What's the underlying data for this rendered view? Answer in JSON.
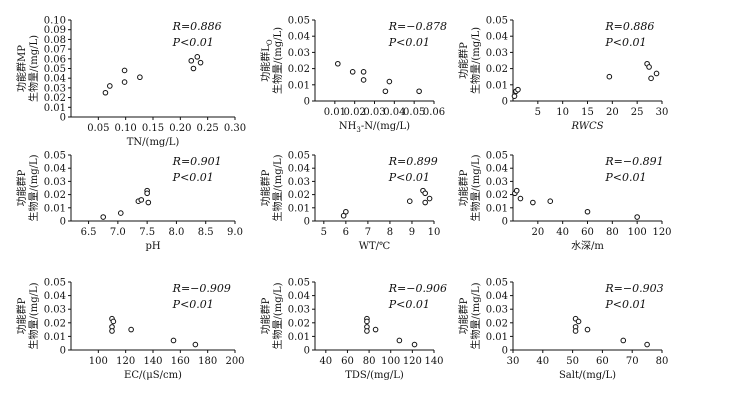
{
  "chart_data": [
    {
      "type": "scatter",
      "ylabel": [
        "功能群MP",
        "生物量/(mg/L)"
      ],
      "xlabel": "TN/(mg/L)",
      "xlim": [
        0,
        0.3
      ],
      "xticks": [
        "0.05",
        "0.10",
        "0.15",
        "0.20",
        "0.25",
        "0.30"
      ],
      "xtick_values": [
        0.05,
        0.1,
        0.15,
        0.2,
        0.25,
        0.3
      ],
      "ylim": [
        0,
        0.1
      ],
      "yticks": [
        "0",
        "0.01",
        "0.02",
        "0.03",
        "0.04",
        "0.05",
        "0.06",
        "0.07",
        "0.08",
        "0.09",
        "0.10"
      ],
      "ytick_values": [
        0,
        0.01,
        0.02,
        0.03,
        0.04,
        0.05,
        0.06,
        0.07,
        0.08,
        0.09,
        0.1
      ],
      "stats": {
        "r": "R=0.886",
        "p": "P<0.01"
      },
      "points": [
        [
          0.063,
          0.025
        ],
        [
          0.071,
          0.032
        ],
        [
          0.098,
          0.036
        ],
        [
          0.098,
          0.048
        ],
        [
          0.126,
          0.041
        ],
        [
          0.22,
          0.058
        ],
        [
          0.224,
          0.05
        ],
        [
          0.231,
          0.062
        ],
        [
          0.237,
          0.056
        ]
      ]
    },
    {
      "type": "scatter",
      "ylabel": [
        "功能群L_O",
        "生物量/(mg/L)"
      ],
      "xlabel": "NH3-N/(mg/L)",
      "xlim": [
        0,
        0.06
      ],
      "xticks": [
        "0.01",
        "0.02",
        "0.03",
        "0.04",
        "0.05",
        "0.06"
      ],
      "xtick_values": [
        0.01,
        0.02,
        0.03,
        0.04,
        0.05,
        0.06
      ],
      "ylim": [
        0,
        0.05
      ],
      "yticks": [
        "0",
        "0.01",
        "0.02",
        "0.03",
        "0.04",
        "0.05"
      ],
      "ytick_values": [
        0,
        0.01,
        0.02,
        0.03,
        0.04,
        0.05
      ],
      "stats": {
        "r": "R=−0.878",
        "p": "P<0.01"
      },
      "points": [
        [
          0.0115,
          0.023
        ],
        [
          0.019,
          0.018
        ],
        [
          0.0245,
          0.018
        ],
        [
          0.0245,
          0.013
        ],
        [
          0.0355,
          0.006
        ],
        [
          0.0375,
          0.012
        ],
        [
          0.0525,
          0.006
        ]
      ]
    },
    {
      "type": "scatter",
      "ylabel": [
        "功能群P",
        "生物量/(mg/L)"
      ],
      "xlabel": "RWCS",
      "xlim": [
        0,
        30
      ],
      "xticks": [
        "5",
        "10",
        "15",
        "20",
        "25",
        "30"
      ],
      "xtick_values": [
        5,
        10,
        15,
        20,
        25,
        30
      ],
      "ylim": [
        0,
        0.05
      ],
      "yticks": [
        "0",
        "0.01",
        "0.02",
        "0.03",
        "0.04",
        "0.05"
      ],
      "ytick_values": [
        0,
        0.01,
        0.02,
        0.03,
        0.04,
        0.05
      ],
      "stats": {
        "r": "R=0.886",
        "p": "P<0.01"
      },
      "points": [
        [
          0.3,
          0.003
        ],
        [
          0.6,
          0.006
        ],
        [
          1.0,
          0.007
        ],
        [
          19.4,
          0.015
        ],
        [
          27.0,
          0.023
        ],
        [
          27.4,
          0.021
        ],
        [
          27.8,
          0.014
        ],
        [
          28.9,
          0.017
        ]
      ]
    },
    {
      "type": "scatter",
      "ylabel": [
        "功能群P",
        "生物量/(mg/L)"
      ],
      "xlabel": "pH",
      "xlim": [
        6.2,
        9.0
      ],
      "xticks": [
        "6.5",
        "7.0",
        "7.5",
        "8.0",
        "8.5",
        "9.0"
      ],
      "xtick_values": [
        6.5,
        7.0,
        7.5,
        8.0,
        8.5,
        9.0
      ],
      "ylim": [
        0,
        0.05
      ],
      "yticks": [
        "0",
        "0.01",
        "0.02",
        "0.03",
        "0.04",
        "0.05"
      ],
      "ytick_values": [
        0,
        0.01,
        0.02,
        0.03,
        0.04,
        0.05
      ],
      "stats": {
        "r": "R=0.901",
        "p": "P<0.01"
      },
      "points": [
        [
          6.75,
          0.003
        ],
        [
          7.05,
          0.006
        ],
        [
          7.35,
          0.015
        ],
        [
          7.4,
          0.016
        ],
        [
          7.5,
          0.023
        ],
        [
          7.5,
          0.021
        ],
        [
          7.52,
          0.014
        ]
      ]
    },
    {
      "type": "scatter",
      "ylabel": [
        "功能群P",
        "生物量/(mg/L)"
      ],
      "xlabel": "WT/℃",
      "xlim": [
        4.6,
        10
      ],
      "xticks": [
        "5",
        "6",
        "7",
        "8",
        "9",
        "10"
      ],
      "xtick_values": [
        5,
        6,
        7,
        8,
        9,
        10
      ],
      "ylim": [
        0,
        0.05
      ],
      "yticks": [
        "0",
        "0.01",
        "0.02",
        "0.03",
        "0.04",
        "0.05"
      ],
      "ytick_values": [
        0,
        0.01,
        0.02,
        0.03,
        0.04,
        0.05
      ],
      "stats": {
        "r": "R=0.899",
        "p": "P<0.01"
      },
      "points": [
        [
          5.9,
          0.004
        ],
        [
          6.0,
          0.007
        ],
        [
          8.9,
          0.015
        ],
        [
          9.5,
          0.023
        ],
        [
          9.6,
          0.021
        ],
        [
          9.6,
          0.014
        ],
        [
          9.8,
          0.017
        ]
      ]
    },
    {
      "type": "scatter",
      "ylabel": [
        "功能群P",
        "生物量/(mg/L)"
      ],
      "xlabel": "水深/m",
      "xlim": [
        0,
        120
      ],
      "xticks": [
        "20",
        "40",
        "60",
        "80",
        "100",
        "120"
      ],
      "xtick_values": [
        20,
        40,
        60,
        80,
        100,
        120
      ],
      "ylim": [
        0,
        0.05
      ],
      "yticks": [
        "0",
        "0.01",
        "0.02",
        "0.03",
        "0.04",
        "0.05"
      ],
      "ytick_values": [
        0,
        0.01,
        0.02,
        0.03,
        0.04,
        0.05
      ],
      "stats": {
        "r": "R=−0.891",
        "p": "P<0.01"
      },
      "points": [
        [
          1.5,
          0.021
        ],
        [
          3.0,
          0.023
        ],
        [
          6.0,
          0.017
        ],
        [
          16.0,
          0.014
        ],
        [
          30.0,
          0.015
        ],
        [
          60.0,
          0.007
        ],
        [
          100.0,
          0.003
        ]
      ]
    },
    {
      "type": "scatter",
      "ylabel": [
        "功能群P",
        "生物量/(mg/L)"
      ],
      "xlabel": "EC/(μS/cm)",
      "xlim": [
        80,
        200
      ],
      "xticks": [
        "100",
        "120",
        "140",
        "160",
        "180",
        "200"
      ],
      "xtick_values": [
        100,
        120,
        140,
        160,
        180,
        200
      ],
      "ylim": [
        0,
        0.05
      ],
      "yticks": [
        "0",
        "0.01",
        "0.02",
        "0.03",
        "0.04",
        "0.05"
      ],
      "ytick_values": [
        0,
        0.01,
        0.02,
        0.03,
        0.04,
        0.05
      ],
      "stats": {
        "r": "R=−0.909",
        "p": "P<0.01"
      },
      "points": [
        [
          110,
          0.023
        ],
        [
          111,
          0.021
        ],
        [
          110,
          0.017
        ],
        [
          110,
          0.014
        ],
        [
          124,
          0.015
        ],
        [
          155,
          0.007
        ],
        [
          171,
          0.004
        ]
      ]
    },
    {
      "type": "scatter",
      "ylabel": [
        "功能群P",
        "生物量/(mg/L)"
      ],
      "xlabel": "TDS/(mg/L)",
      "xlim": [
        30,
        140
      ],
      "xticks": [
        "40",
        "60",
        "80",
        "100",
        "120",
        "140"
      ],
      "xtick_values": [
        40,
        60,
        80,
        100,
        120,
        140
      ],
      "ylim": [
        0,
        0.05
      ],
      "yticks": [
        "0",
        "0.01",
        "0.02",
        "0.03",
        "0.04",
        "0.05"
      ],
      "ytick_values": [
        0,
        0.01,
        0.02,
        0.03,
        0.04,
        0.05
      ],
      "stats": {
        "r": "R=−0.906",
        "p": "P<0.01"
      },
      "points": [
        [
          78,
          0.023
        ],
        [
          78,
          0.021
        ],
        [
          78,
          0.017
        ],
        [
          78,
          0.014
        ],
        [
          86,
          0.015
        ],
        [
          108,
          0.007
        ],
        [
          122,
          0.004
        ]
      ]
    },
    {
      "type": "scatter",
      "ylabel": [
        "功能群P",
        "生物量/(mg/L)"
      ],
      "xlabel": "Salt/(mg/L)",
      "xlim": [
        30,
        80
      ],
      "xticks": [
        "30",
        "40",
        "50",
        "60",
        "70",
        "80"
      ],
      "xtick_values": [
        30,
        40,
        50,
        60,
        70,
        80
      ],
      "ylim": [
        0,
        0.05
      ],
      "yticks": [
        "0",
        "0.01",
        "0.02",
        "0.03",
        "0.04",
        "0.05"
      ],
      "ytick_values": [
        0,
        0.01,
        0.02,
        0.03,
        0.04,
        0.05
      ],
      "stats": {
        "r": "R=−0.903",
        "p": "P<0.01"
      },
      "points": [
        [
          51,
          0.023
        ],
        [
          52,
          0.021
        ],
        [
          51,
          0.017
        ],
        [
          51,
          0.014
        ],
        [
          55,
          0.015
        ],
        [
          67,
          0.007
        ],
        [
          75,
          0.004
        ]
      ]
    }
  ]
}
